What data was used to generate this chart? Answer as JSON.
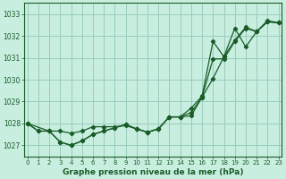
{
  "title": "Graphe pression niveau de la mer (hPa)",
  "bg_color": "#c8eee0",
  "grid_color": "#99ccbb",
  "line_color": "#1a5c28",
  "x_ticks": [
    0,
    1,
    2,
    3,
    4,
    5,
    6,
    7,
    8,
    9,
    10,
    11,
    12,
    13,
    14,
    15,
    16,
    17,
    18,
    19,
    20,
    21,
    22,
    23
  ],
  "xlim": [
    -0.3,
    23.3
  ],
  "ylim": [
    1026.5,
    1033.5
  ],
  "yticks": [
    1027,
    1028,
    1029,
    1030,
    1031,
    1032,
    1033
  ],
  "line1_x": [
    0,
    1,
    2,
    3,
    4,
    5,
    6,
    7,
    8,
    9,
    10,
    11,
    12,
    13,
    14,
    15,
    16,
    17,
    18,
    19,
    20,
    21,
    22,
    23
  ],
  "line1_y": [
    1028.0,
    1027.65,
    1027.65,
    1027.15,
    1027.0,
    1027.2,
    1027.5,
    1027.65,
    1027.8,
    1027.95,
    1027.75,
    1027.6,
    1027.75,
    1028.3,
    1028.3,
    1028.5,
    1029.2,
    1030.05,
    1031.05,
    1031.8,
    1032.4,
    1032.2,
    1032.7,
    1032.6
  ],
  "line2_x": [
    0,
    1,
    2,
    3,
    4,
    5,
    6,
    7,
    8,
    9,
    10,
    11,
    12,
    13,
    14,
    15,
    16,
    17,
    18,
    19,
    20,
    21,
    22,
    23
  ],
  "line2_y": [
    1028.0,
    1027.65,
    1027.65,
    1027.15,
    1027.0,
    1027.2,
    1027.5,
    1027.65,
    1027.8,
    1027.95,
    1027.75,
    1027.6,
    1027.75,
    1028.3,
    1028.3,
    1028.7,
    1029.25,
    1031.75,
    1031.05,
    1032.35,
    1031.5,
    1032.2,
    1032.65,
    1032.6
  ],
  "line3_x": [
    0,
    2,
    3,
    4,
    5,
    6,
    7,
    8,
    9,
    10,
    11,
    12,
    13,
    14,
    15,
    16,
    17,
    18,
    19,
    20,
    21,
    22,
    23
  ],
  "line3_y": [
    1028.0,
    1027.65,
    1027.65,
    1027.55,
    1027.65,
    1027.85,
    1027.85,
    1027.85,
    1027.9,
    1027.75,
    1027.6,
    1027.75,
    1028.3,
    1028.3,
    1028.35,
    1029.2,
    1030.95,
    1030.95,
    1031.75,
    1032.35,
    1032.2,
    1032.65,
    1032.6
  ],
  "tick_fontsize": 5.5,
  "xlabel_fontsize": 6.5
}
